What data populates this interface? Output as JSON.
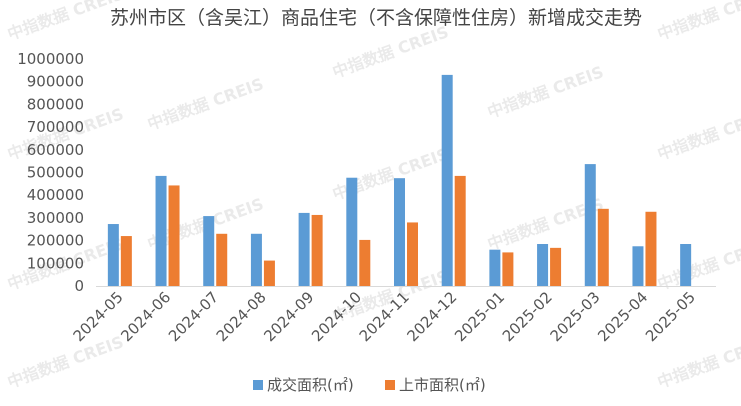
{
  "chart_data": {
    "type": "bar",
    "title": "苏州市区（含吴江）商品住宅（不含保障性住房）新增成交走势",
    "xlabel": "",
    "ylabel": "",
    "categories": [
      "2024-05",
      "2024-06",
      "2024-07",
      "2024-08",
      "2024-09",
      "2024-10",
      "2024-11",
      "2024-12",
      "2025-01",
      "2025-02",
      "2025-03",
      "2025-04",
      "2025-05"
    ],
    "yticks": [
      "0",
      "100000",
      "200000",
      "300000",
      "400000",
      "500000",
      "600000",
      "700000",
      "800000",
      "900000",
      "1000000"
    ],
    "ylim": [
      0,
      1000000
    ],
    "grid": false,
    "legend_position": "bottom",
    "series": [
      {
        "name": "成交面积(㎡)",
        "color": "#5b9bd5",
        "values": [
          273000,
          485000,
          308000,
          230000,
          322000,
          477000,
          475000,
          930000,
          160000,
          185000,
          537000,
          175000,
          185000
        ]
      },
      {
        "name": "上市面积(㎡)",
        "color": "#ed7d31",
        "values": [
          220000,
          443000,
          230000,
          112000,
          313000,
          203000,
          280000,
          485000,
          148000,
          168000,
          340000,
          327000,
          0
        ]
      }
    ]
  },
  "watermark": "中指数据 CREIS"
}
